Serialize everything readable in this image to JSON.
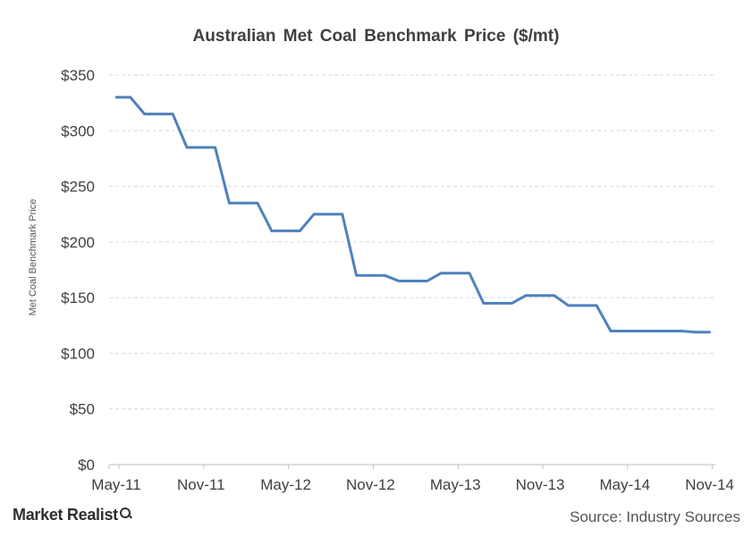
{
  "chart_data": {
    "type": "line",
    "title": "Australian Met Coal Benchmark Price ($/mt)",
    "ylabel": "Met Coal Benchmark Price",
    "xlabel": "",
    "ylim": [
      0,
      350
    ],
    "yticks": [
      0,
      50,
      100,
      150,
      200,
      250,
      300,
      350
    ],
    "ytick_labels": [
      "$0",
      "$50",
      "$100",
      "$150",
      "$200",
      "$250",
      "$300",
      "$350"
    ],
    "xticks": [
      "May-11",
      "Nov-11",
      "May-12",
      "Nov-12",
      "May-13",
      "Nov-13",
      "May-14",
      "Nov-14"
    ],
    "grid": true,
    "series": [
      {
        "color": "#4f81bd",
        "x": [
          "2011-05-01",
          "2011-06-01",
          "2011-07-01",
          "2011-08-01",
          "2011-09-01",
          "2011-10-01",
          "2011-11-01",
          "2011-12-01",
          "2012-01-01",
          "2012-02-01",
          "2012-03-01",
          "2012-04-01",
          "2012-05-01",
          "2012-06-01",
          "2012-07-01",
          "2012-08-01",
          "2012-09-01",
          "2012-10-01",
          "2012-11-01",
          "2012-12-01",
          "2013-01-01",
          "2013-02-01",
          "2013-03-01",
          "2013-04-01",
          "2013-05-01",
          "2013-06-01",
          "2013-07-01",
          "2013-08-01",
          "2013-09-01",
          "2013-10-01",
          "2013-11-01",
          "2013-12-01",
          "2014-01-01",
          "2014-02-01",
          "2014-03-01",
          "2014-04-01",
          "2014-05-01",
          "2014-06-01",
          "2014-07-01",
          "2014-08-01",
          "2014-09-01",
          "2014-10-01",
          "2014-11-01"
        ],
        "values": [
          330,
          330,
          315,
          315,
          315,
          285,
          285,
          285,
          235,
          235,
          235,
          210,
          210,
          210,
          225,
          225,
          225,
          170,
          170,
          170,
          165,
          165,
          165,
          172,
          172,
          172,
          145,
          145,
          145,
          152,
          152,
          152,
          143,
          143,
          143,
          120,
          120,
          120,
          120,
          120,
          120,
          119,
          119
        ]
      }
    ]
  },
  "footer": {
    "brand": "Market Realist",
    "source": "Source: Industry Sources"
  }
}
